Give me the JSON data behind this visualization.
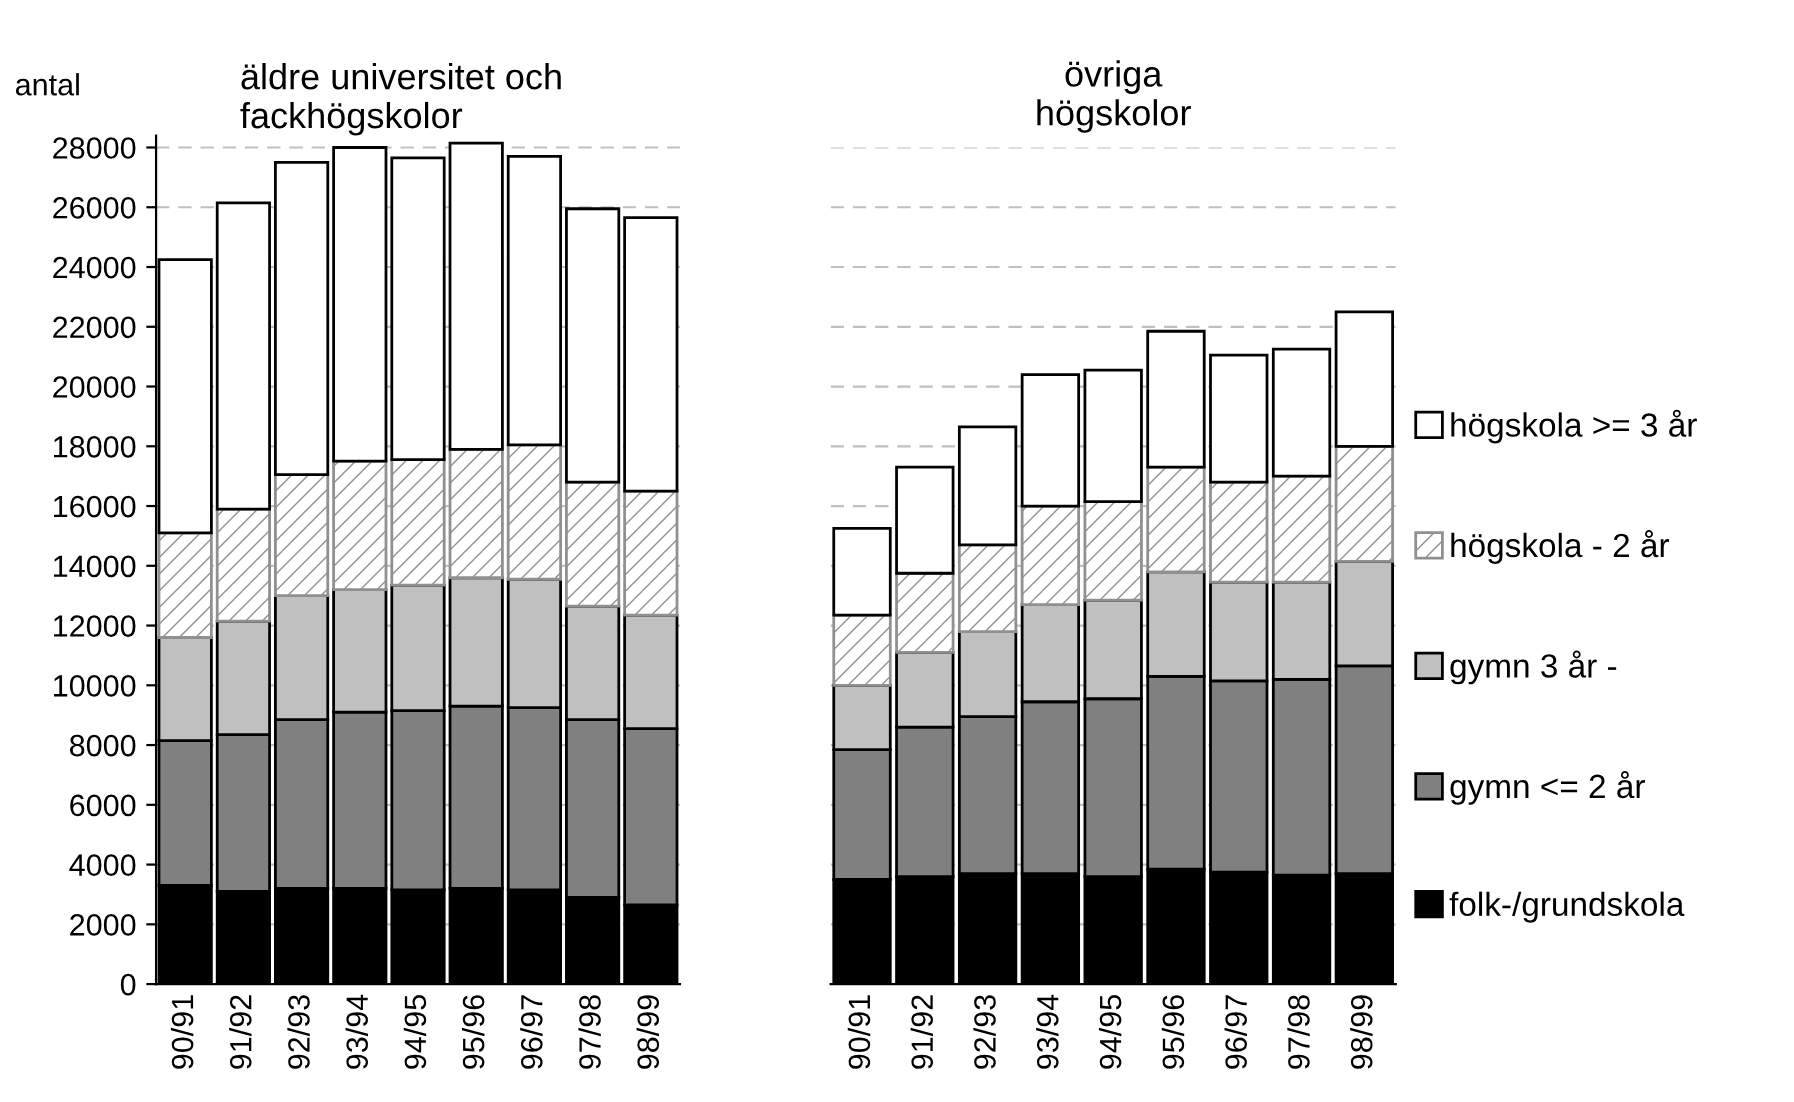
{
  "chart_data": [
    {
      "type": "bar",
      "stacked": true,
      "title": "äldre universitet och\nfackhögskolor",
      "ylabel": "antal",
      "categories": [
        "90/91",
        "91/92",
        "92/93",
        "93/94",
        "94/95",
        "95/96",
        "96/97",
        "97/98",
        "98/99"
      ],
      "ylim": [
        0,
        28400
      ],
      "yticks": [
        0,
        2000,
        4000,
        6000,
        8000,
        10000,
        12000,
        14000,
        16000,
        18000,
        20000,
        22000,
        24000,
        26000,
        28000
      ],
      "grid": "y",
      "series": [
        {
          "color": "#000000",
          "values": [
            3300,
            3100,
            3200,
            3200,
            3150,
            3200,
            3150,
            2900,
            2650
          ]
        },
        {
          "color": "#808080",
          "values": [
            4850,
            5250,
            5650,
            5900,
            6000,
            6100,
            6100,
            5950,
            5900
          ]
        },
        {
          "color": "#c0c0c0",
          "values": [
            3450,
            3800,
            4150,
            4100,
            4200,
            4300,
            4300,
            3800,
            3800
          ]
        },
        {
          "color": "#909090",
          "values": [
            3500,
            3750,
            4050,
            4300,
            4200,
            4300,
            4500,
            4150,
            4150
          ]
        },
        {
          "color": "#ffffff",
          "values": [
            9150,
            10250,
            10450,
            10500,
            10100,
            10250,
            9650,
            9150,
            9150
          ]
        }
      ]
    },
    {
      "type": "bar",
      "stacked": true,
      "title": "övriga\nhögskolor",
      "categories": [
        "90/91",
        "91/92",
        "92/93",
        "93/94",
        "94/95",
        "95/96",
        "96/97",
        "97/98",
        "98/99"
      ],
      "ylim": [
        0,
        28000
      ],
      "yticks": [
        0,
        2000,
        4000,
        6000,
        8000,
        10000,
        12000,
        14000,
        16000,
        18000,
        20000,
        22000,
        24000,
        26000,
        28000
      ],
      "tick_labels": "x",
      "grid": "y",
      "legend": "right",
      "series": [
        {
          "name": "folk-/grundskola",
          "color": "#000000",
          "values": [
            3500,
            3600,
            3700,
            3700,
            3600,
            3850,
            3750,
            3650,
            3700
          ]
        },
        {
          "name": "gymn <= 2 år",
          "color": "#808080",
          "values": [
            4350,
            5000,
            5250,
            5750,
            5950,
            6450,
            6400,
            6550,
            6950
          ]
        },
        {
          "name": "gymn 3 år -",
          "color": "#c0c0c0",
          "values": [
            2150,
            2500,
            2850,
            3250,
            3300,
            3500,
            3300,
            3250,
            3500
          ]
        },
        {
          "name": "högskola - 2 år",
          "color": "#909090",
          "values": [
            2350,
            2650,
            2900,
            3300,
            3300,
            3500,
            3350,
            3550,
            3850
          ]
        },
        {
          "name": "högskola >= 3 år",
          "color": "#ffffff",
          "values": [
            2900,
            3550,
            3950,
            4400,
            4400,
            4550,
            4250,
            4250,
            4500
          ]
        }
      ]
    }
  ]
}
